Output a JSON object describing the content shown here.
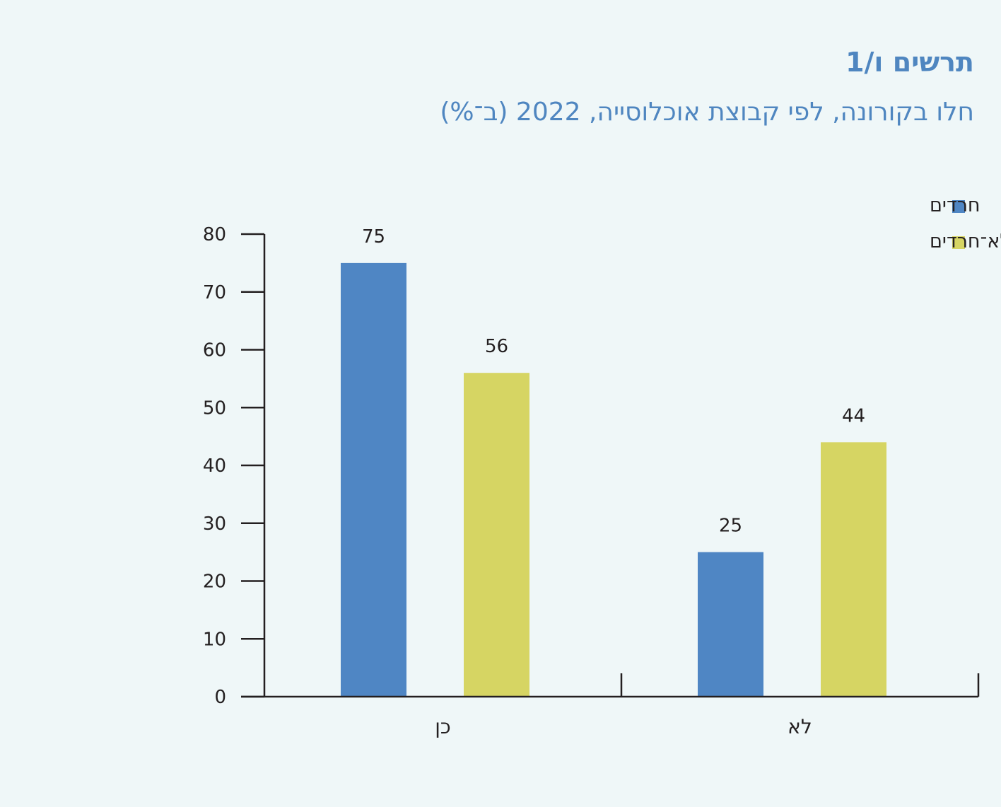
{
  "figure": {
    "number": "תרשים ו/1",
    "title": "חלו בקורונה, לפי קבוצת אוכלוסייה, 2022 (ב־%)"
  },
  "colors": {
    "background": "#eff7f8",
    "title": "#4f86c0",
    "axis": "#231f20"
  },
  "chart_data": {
    "type": "bar",
    "categories": [
      "כן",
      "לא"
    ],
    "series": [
      {
        "name": "חרדים",
        "values": [
          75,
          25
        ],
        "color": "#4f86c4"
      },
      {
        "name": "יהודים לא־חרדים",
        "values": [
          56,
          44
        ],
        "color": "#d6d563"
      }
    ],
    "title": "חלו בקורונה, לפי קבוצת אוכלוסייה, 2022 (ב־%)",
    "xlabel": "",
    "ylabel": "",
    "ylim": [
      0,
      80
    ],
    "yticks": [
      0,
      10,
      20,
      30,
      40,
      50,
      60,
      70,
      80
    ],
    "data_labels": true,
    "grid": false,
    "legend": "top-right"
  }
}
